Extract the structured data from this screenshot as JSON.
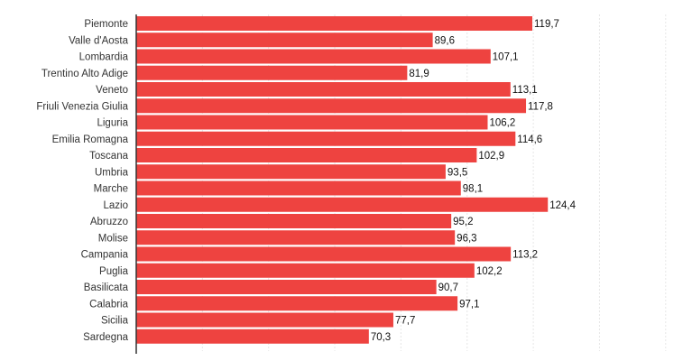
{
  "chart_data": {
    "type": "bar",
    "orientation": "horizontal",
    "categories": [
      "Piemonte",
      "Valle d'Aosta",
      "Lombardia",
      "Trentino Alto Adige",
      "Veneto",
      "Friuli Venezia Giulia",
      "Liguria",
      "Emilia Romagna",
      "Toscana",
      "Umbria",
      "Marche",
      "Lazio",
      "Abruzzo",
      "Molise",
      "Campania",
      "Puglia",
      "Basilicata",
      "Calabria",
      "Sicilia",
      "Sardegna"
    ],
    "values": [
      119.7,
      89.6,
      107.1,
      81.9,
      113.1,
      117.8,
      106.2,
      114.6,
      102.9,
      93.5,
      98.1,
      124.4,
      95.2,
      96.3,
      113.2,
      102.2,
      90.7,
      97.1,
      77.7,
      70.3
    ],
    "value_labels": [
      "119,7",
      "89,6",
      "107,1",
      "81,9",
      "113,1",
      "117,8",
      "106,2",
      "114,6",
      "102,9",
      "93,5",
      "98,1",
      "124,4",
      "95,2",
      "96,3",
      "113,2",
      "102,2",
      "90,7",
      "97,1",
      "77,7",
      "70,3"
    ],
    "title": "",
    "xlabel": "",
    "ylabel": "",
    "xlim": [
      0,
      160
    ],
    "grid": true,
    "legend": "none",
    "bar_color": "#ee4340"
  }
}
